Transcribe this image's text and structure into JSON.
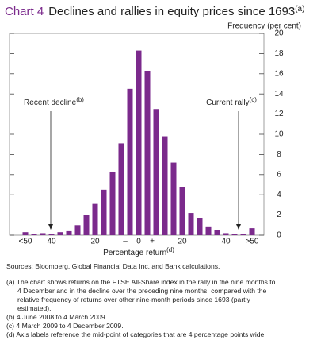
{
  "chart_data": {
    "type": "bar",
    "title_prefix": "Chart 4",
    "title": "Declines and rallies in equity prices since 1693",
    "title_note": "(a)",
    "y_axis_label": "Frequency (per cent)",
    "x_axis_label": "Percentage return",
    "x_axis_note": "(d)",
    "minus_sign": "–",
    "plus_sign": "+",
    "annotations": [
      {
        "text": "Recent decline",
        "note": "(b)"
      },
      {
        "text": "Current rally",
        "note": "(c)"
      }
    ],
    "categories": [
      "<50",
      null,
      null,
      "40",
      null,
      null,
      null,
      null,
      "20",
      null,
      null,
      null,
      null,
      "0",
      null,
      null,
      null,
      null,
      "20",
      null,
      null,
      null,
      null,
      "40",
      null,
      null,
      ">50"
    ],
    "values": [
      0.3,
      0.1,
      0.2,
      0.1,
      0.3,
      0.4,
      1.0,
      2.0,
      3.1,
      4.5,
      6.3,
      9.1,
      14.5,
      18.3,
      16.3,
      12.5,
      9.8,
      7.2,
      4.8,
      2.2,
      1.7,
      0.8,
      0.5,
      0.2,
      0.1,
      0.1,
      0.7
    ],
    "color": "#7b2a8c",
    "ylim": [
      0,
      20
    ],
    "yticks": [
      0,
      2,
      4,
      6,
      8,
      10,
      12,
      14,
      16,
      18,
      20
    ],
    "source": "Sources: Bloomberg, Global Financial Data Inc. and Bank calculations.",
    "notes": [
      "(a) The chart shows returns on the FTSE All-Share index in the rally in the nine months to 4 December and in the decline over the preceding nine months, compared with the relative frequency of returns over other nine-month periods since 1693 (partly estimated).",
      "(b) 4 June 2008 to 4 March 2009.",
      "(c) 4 March 2009 to 4 December 2009.",
      "(d) Axis labels reference the mid-point of categories that are 4 percentage points wide."
    ]
  }
}
